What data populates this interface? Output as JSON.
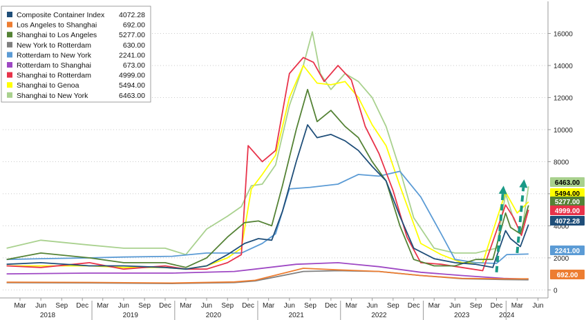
{
  "chart_data": {
    "type": "line",
    "title": "",
    "xlabel": "",
    "ylabel": "",
    "ylim": [
      -500,
      18000
    ],
    "y_ticks": [
      0,
      2000,
      4000,
      6000,
      8000,
      10000,
      12000,
      14000,
      16000
    ],
    "y_tick_labels": [
      "0",
      "2000",
      "4000",
      "6000",
      "8000",
      "10000",
      "12000",
      "14000",
      "16000"
    ],
    "x_range": [
      "2017-12-15",
      "2024-07-15"
    ],
    "month_ticks": [
      {
        "label": "Mar",
        "date": "2018-03-01"
      },
      {
        "label": "Jun",
        "date": "2018-06-01"
      },
      {
        "label": "Sep",
        "date": "2018-09-01"
      },
      {
        "label": "Dec",
        "date": "2018-12-01"
      },
      {
        "label": "Mar",
        "date": "2019-03-01"
      },
      {
        "label": "Jun",
        "date": "2019-06-01"
      },
      {
        "label": "Sep",
        "date": "2019-09-01"
      },
      {
        "label": "Dec",
        "date": "2019-12-01"
      },
      {
        "label": "Mar",
        "date": "2020-03-01"
      },
      {
        "label": "Jun",
        "date": "2020-06-01"
      },
      {
        "label": "Sep",
        "date": "2020-09-01"
      },
      {
        "label": "Dec",
        "date": "2020-12-01"
      },
      {
        "label": "Mar",
        "date": "2021-03-01"
      },
      {
        "label": "Jun",
        "date": "2021-06-01"
      },
      {
        "label": "Sep",
        "date": "2021-09-01"
      },
      {
        "label": "Dec",
        "date": "2021-12-01"
      },
      {
        "label": "Mar",
        "date": "2022-03-01"
      },
      {
        "label": "Jun",
        "date": "2022-06-01"
      },
      {
        "label": "Sep",
        "date": "2022-09-01"
      },
      {
        "label": "Dec",
        "date": "2022-12-01"
      },
      {
        "label": "Mar",
        "date": "2023-03-01"
      },
      {
        "label": "Jun",
        "date": "2023-06-01"
      },
      {
        "label": "Sep",
        "date": "2023-09-01"
      },
      {
        "label": "Dec",
        "date": "2023-12-01"
      },
      {
        "label": "Mar",
        "date": "2024-03-01"
      },
      {
        "label": "Jun",
        "date": "2024-06-01"
      }
    ],
    "year_labels": [
      {
        "label": "2018",
        "date": "2018-07-01"
      },
      {
        "label": "2019",
        "date": "2019-07-01"
      },
      {
        "label": "2020",
        "date": "2020-07-01"
      },
      {
        "label": "2021",
        "date": "2021-07-01"
      },
      {
        "label": "2022",
        "date": "2022-07-01"
      },
      {
        "label": "2023",
        "date": "2023-07-01"
      },
      {
        "label": "2024",
        "date": "2024-01-15"
      }
    ],
    "series": [
      {
        "name": "Composite Container Index",
        "last": "4072.28",
        "color": "#1f4e79",
        "x": [
          "2018-01-01",
          "2018-06-01",
          "2019-01-01",
          "2019-06-01",
          "2019-12-01",
          "2020-03-01",
          "2020-06-01",
          "2020-09-01",
          "2020-11-15",
          "2021-01-15",
          "2021-03-15",
          "2021-05-01",
          "2021-07-01",
          "2021-08-20",
          "2021-10-01",
          "2021-12-01",
          "2022-02-01",
          "2022-04-01",
          "2022-06-01",
          "2022-08-01",
          "2022-10-01",
          "2022-12-01",
          "2023-03-01",
          "2023-06-01",
          "2023-09-01",
          "2023-11-15",
          "2024-01-10",
          "2024-02-01",
          "2024-03-15",
          "2024-04-20"
        ],
        "y": [
          1600,
          1700,
          1500,
          1500,
          1400,
          1300,
          1500,
          2200,
          2900,
          3200,
          3100,
          4900,
          8000,
          10300,
          9500,
          9700,
          9300,
          8700,
          7700,
          6800,
          4600,
          2600,
          1950,
          1700,
          1600,
          1400,
          3700,
          3200,
          2700,
          4072
        ]
      },
      {
        "name": "Los Angeles to Shanghai",
        "last": "692.00",
        "color": "#ed7d31",
        "x": [
          "2018-01-01",
          "2019-01-01",
          "2020-01-01",
          "2020-10-01",
          "2021-01-01",
          "2021-08-01",
          "2022-01-01",
          "2022-07-01",
          "2023-01-01",
          "2023-07-01",
          "2024-01-01",
          "2024-04-20"
        ],
        "y": [
          480,
          470,
          430,
          500,
          600,
          1350,
          1250,
          1150,
          900,
          720,
          690,
          692
        ]
      },
      {
        "name": "Shanghai to Los Angeles",
        "last": "5277.00",
        "color": "#548235",
        "x": [
          "2018-01-01",
          "2018-06-01",
          "2019-01-01",
          "2019-06-01",
          "2019-12-01",
          "2020-03-01",
          "2020-06-01",
          "2020-09-01",
          "2020-11-15",
          "2021-01-15",
          "2021-03-15",
          "2021-05-01",
          "2021-07-01",
          "2021-08-20",
          "2021-10-01",
          "2021-12-01",
          "2022-02-01",
          "2022-04-01",
          "2022-06-01",
          "2022-08-01",
          "2022-10-01",
          "2022-12-01",
          "2023-03-01",
          "2023-06-01",
          "2023-09-01",
          "2023-11-15",
          "2024-01-10",
          "2024-02-01",
          "2024-03-15",
          "2024-04-20"
        ],
        "y": [
          1900,
          2300,
          2000,
          1700,
          1700,
          1400,
          2000,
          3300,
          4200,
          4300,
          4000,
          6500,
          10000,
          12500,
          10500,
          11200,
          10200,
          9500,
          8000,
          6800,
          4000,
          1900,
          1500,
          1500,
          1900,
          1900,
          4800,
          3900,
          3500,
          5277
        ]
      },
      {
        "name": "New York to Rotterdam",
        "last": "630.00",
        "color": "#7f7f7f",
        "x": [
          "2018-01-01",
          "2019-01-01",
          "2020-01-01",
          "2020-10-01",
          "2021-01-01",
          "2021-08-01",
          "2022-01-01",
          "2022-07-01",
          "2023-01-01",
          "2023-07-01",
          "2024-01-01",
          "2024-04-20"
        ],
        "y": [
          450,
          440,
          400,
          460,
          560,
          1150,
          1200,
          1150,
          900,
          700,
          650,
          630
        ]
      },
      {
        "name": "Rotterdam to New York",
        "last": "2241.00",
        "color": "#5b9bd5",
        "x": [
          "2018-01-01",
          "2018-06-01",
          "2019-01-01",
          "2019-06-01",
          "2020-01-01",
          "2020-06-01",
          "2020-11-01",
          "2021-02-01",
          "2021-04-01",
          "2021-06-01",
          "2021-09-01",
          "2022-01-01",
          "2022-04-01",
          "2022-07-01",
          "2022-10-01",
          "2023-01-01",
          "2023-04-01",
          "2023-06-01",
          "2023-09-01",
          "2023-12-01",
          "2024-01-15",
          "2024-04-20"
        ],
        "y": [
          1900,
          1950,
          2000,
          2050,
          2100,
          2300,
          2300,
          2900,
          3500,
          6300,
          6400,
          6600,
          7200,
          7100,
          7400,
          5800,
          3500,
          1900,
          1700,
          1650,
          2200,
          2241
        ]
      },
      {
        "name": "Rotterdam to Shanghai",
        "last": "673.00",
        "color": "#9e48c4",
        "x": [
          "2018-01-01",
          "2019-01-01",
          "2020-01-01",
          "2020-10-01",
          "2021-01-01",
          "2021-07-01",
          "2022-01-01",
          "2022-07-01",
          "2023-01-01",
          "2023-07-01",
          "2024-01-01",
          "2024-04-20"
        ],
        "y": [
          1000,
          1050,
          1050,
          1150,
          1300,
          1600,
          1700,
          1450,
          1100,
          900,
          720,
          673
        ]
      },
      {
        "name": "Shanghai to Rotterdam",
        "last": "4999.00",
        "color": "#e8334a",
        "x": [
          "2018-01-01",
          "2018-06-01",
          "2019-01-01",
          "2019-06-01",
          "2019-12-01",
          "2020-03-01",
          "2020-06-01",
          "2020-09-01",
          "2020-11-01",
          "2020-12-01",
          "2021-02-01",
          "2021-04-01",
          "2021-06-01",
          "2021-08-01",
          "2021-09-15",
          "2021-11-01",
          "2022-01-01",
          "2022-03-01",
          "2022-05-01",
          "2022-07-01",
          "2022-09-01",
          "2022-11-01",
          "2023-01-01",
          "2023-04-01",
          "2023-07-01",
          "2023-10-01",
          "2024-01-10",
          "2024-02-15",
          "2024-03-20",
          "2024-04-20"
        ],
        "y": [
          1500,
          1400,
          1700,
          1300,
          1500,
          1300,
          1300,
          1700,
          2200,
          9000,
          8000,
          8700,
          13500,
          14500,
          14200,
          13000,
          14000,
          13100,
          10200,
          8500,
          6200,
          3300,
          1700,
          1600,
          1400,
          1200,
          5300,
          4500,
          3400,
          4999
        ]
      },
      {
        "name": "Shanghai to Genoa",
        "last": "5494.00",
        "color": "#ffff00",
        "x": [
          "2018-01-01",
          "2018-06-01",
          "2019-01-01",
          "2019-06-01",
          "2019-12-01",
          "2020-03-01",
          "2020-06-01",
          "2020-09-01",
          "2020-11-01",
          "2020-12-15",
          "2021-02-01",
          "2021-04-01",
          "2021-06-01",
          "2021-08-01",
          "2021-10-01",
          "2021-12-01",
          "2022-02-01",
          "2022-04-01",
          "2022-06-01",
          "2022-08-01",
          "2022-10-01",
          "2023-01-01",
          "2023-04-01",
          "2023-07-01",
          "2023-10-01",
          "2024-01-10",
          "2024-03-01",
          "2024-04-20"
        ],
        "y": [
          1500,
          1500,
          1500,
          1400,
          1400,
          1300,
          1500,
          2000,
          2600,
          6300,
          7200,
          8400,
          12000,
          14000,
          12900,
          12800,
          13000,
          12000,
          10300,
          9000,
          6500,
          2900,
          2200,
          1700,
          1700,
          6100,
          4800,
          5494
        ]
      },
      {
        "name": "Shanghai to New York",
        "last": "6463.00",
        "color": "#a9d18e",
        "x": [
          "2018-01-01",
          "2018-06-01",
          "2019-01-01",
          "2019-06-01",
          "2019-12-01",
          "2020-03-01",
          "2020-06-01",
          "2020-09-01",
          "2020-11-01",
          "2020-12-15",
          "2021-02-01",
          "2021-04-01",
          "2021-06-01",
          "2021-08-01",
          "2021-09-10",
          "2021-10-15",
          "2021-12-01",
          "2022-02-01",
          "2022-04-01",
          "2022-06-01",
          "2022-08-01",
          "2022-10-01",
          "2022-12-01",
          "2023-03-01",
          "2023-06-01",
          "2023-09-01",
          "2023-12-01",
          "2024-01-10",
          "2024-02-15",
          "2024-03-20",
          "2024-04-20"
        ],
        "y": [
          2600,
          3100,
          2800,
          2600,
          2600,
          2200,
          3800,
          4600,
          5200,
          6500,
          6600,
          7800,
          11500,
          14000,
          16100,
          13500,
          12500,
          13500,
          13000,
          12000,
          10200,
          7500,
          4500,
          2600,
          2300,
          2300,
          2600,
          6000,
          4400,
          3500,
          6463
        ]
      }
    ],
    "right_tags": [
      {
        "series": "Shanghai to New York",
        "label": "6463.00",
        "value": 6463,
        "bg": "#a9d18e",
        "fg": "#000000"
      },
      {
        "series": "Shanghai to Genoa",
        "label": "5494.00",
        "value": 5494,
        "bg": "#ffff00",
        "fg": "#000000"
      },
      {
        "series": "Shanghai to Los Angeles",
        "label": "5277.00",
        "value": 5277,
        "bg": "#548235",
        "fg": "#ffffff"
      },
      {
        "series": "Shanghai to Rotterdam",
        "label": "4999.00",
        "value": 4999,
        "bg": "#e8334a",
        "fg": "#ffffff"
      },
      {
        "series": "Composite Container Index",
        "label": "4072.28",
        "value": 4072,
        "bg": "#1f4e79",
        "fg": "#ffffff"
      },
      {
        "series": "Rotterdam to New York",
        "label": "2241.00",
        "value": 2241,
        "bg": "#5b9bd5",
        "fg": "#ffffff"
      },
      {
        "series": "Los Angeles to Shanghai",
        "label": "692.00",
        "value": 692,
        "bg": "#ed7d31",
        "fg": "#ffffff"
      }
    ],
    "annotations": [
      {
        "type": "arrow",
        "style": "dashed",
        "color": "#1a9a86",
        "from": {
          "x": "2023-12-01",
          "y": 1100
        },
        "to": {
          "x": "2024-01-01",
          "y": 6500
        }
      },
      {
        "type": "arrow",
        "style": "dashed",
        "color": "#1a9a86",
        "from": {
          "x": "2024-03-01",
          "y": 2300
        },
        "to": {
          "x": "2024-04-01",
          "y": 6900
        }
      }
    ],
    "legend": {
      "placement": "top-left"
    },
    "grid": {
      "horizontal": true,
      "vertical": false,
      "style": "dotted"
    }
  }
}
